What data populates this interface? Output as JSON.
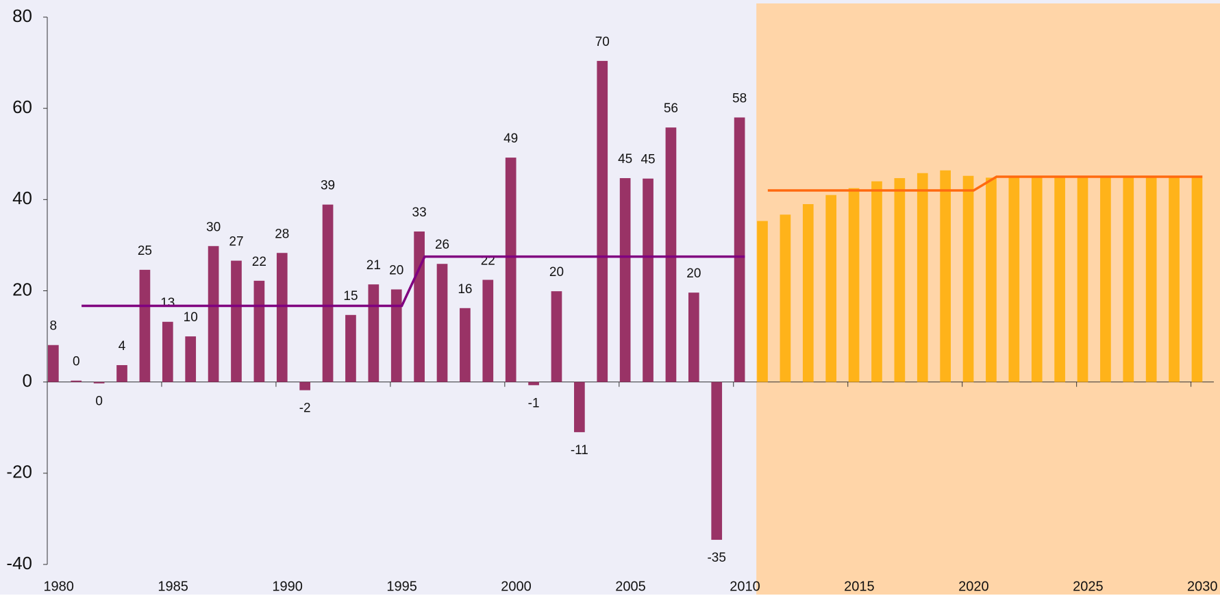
{
  "chart_data": {
    "type": "bar",
    "x": [
      1980,
      1981,
      1982,
      1983,
      1984,
      1985,
      1986,
      1987,
      1988,
      1989,
      1990,
      1991,
      1992,
      1993,
      1994,
      1995,
      1996,
      1997,
      1998,
      1999,
      2000,
      2001,
      2002,
      2003,
      2004,
      2005,
      2006,
      2007,
      2008,
      2009,
      2010,
      2011,
      2012,
      2013,
      2014,
      2015,
      2016,
      2017,
      2018,
      2019,
      2020,
      2021,
      2022,
      2023,
      2024,
      2025,
      2026,
      2027,
      2028,
      2029,
      2030
    ],
    "series": [
      {
        "type": "bar",
        "color": "#993366",
        "values": [
          8.1,
          0.3,
          -0.3,
          3.7,
          24.6,
          13.2,
          10,
          29.8,
          26.6,
          22.2,
          28.3,
          -1.8,
          38.9,
          14.7,
          21.4,
          20.3,
          33,
          25.9,
          16.2,
          22.4,
          49.2,
          -0.7,
          19.9,
          -11,
          70.4,
          44.7,
          44.6,
          55.8,
          19.6,
          -34.6,
          58,
          null,
          null,
          null,
          null,
          null,
          null,
          null,
          null,
          null,
          null,
          null,
          null,
          null,
          null,
          null,
          null,
          null,
          null,
          null,
          null
        ],
        "value_labels": [
          "8",
          "0",
          "0",
          "4",
          "25",
          "13",
          "10",
          "30",
          "27",
          "22",
          "28",
          "-2",
          "39",
          "15",
          "21",
          "20",
          "33",
          "26",
          "16",
          "22",
          "49",
          "-1",
          "20",
          "-11",
          "70",
          "45",
          "45",
          "56",
          "20",
          "-35",
          "58",
          null,
          null,
          null,
          null,
          null,
          null,
          null,
          null,
          null,
          null,
          null,
          null,
          null,
          null,
          null,
          null,
          null,
          null,
          null,
          null
        ]
      },
      {
        "type": "bar",
        "color": "#ffb31a",
        "values": [
          null,
          null,
          null,
          null,
          null,
          null,
          null,
          null,
          null,
          null,
          null,
          null,
          null,
          null,
          null,
          null,
          null,
          null,
          null,
          null,
          null,
          null,
          null,
          null,
          null,
          null,
          null,
          null,
          null,
          null,
          null,
          35.3,
          36.7,
          39,
          41,
          42.5,
          44,
          44.7,
          45.8,
          46.4,
          45.2,
          44.8,
          44.8,
          44.8,
          44.8,
          44.8,
          44.8,
          44.8,
          44.8,
          44.8,
          44.8
        ]
      },
      {
        "type": "line",
        "color": "#800080",
        "values": [
          null,
          16.7,
          16.7,
          16.7,
          16.7,
          16.7,
          16.7,
          16.7,
          16.7,
          16.7,
          16.7,
          16.7,
          16.7,
          16.7,
          16.7,
          16.7,
          27.5,
          27.5,
          27.5,
          27.5,
          27.5,
          27.5,
          27.5,
          27.5,
          27.5,
          27.5,
          27.5,
          27.5,
          27.5,
          27.5,
          27.5,
          null,
          null,
          null,
          null,
          null,
          null,
          null,
          null,
          null,
          null,
          null,
          null,
          null,
          null,
          null,
          null,
          null,
          null,
          null,
          null
        ]
      },
      {
        "type": "line",
        "color": "#ff6a10",
        "values": [
          null,
          null,
          null,
          null,
          null,
          null,
          null,
          null,
          null,
          null,
          null,
          null,
          null,
          null,
          null,
          null,
          null,
          null,
          null,
          null,
          null,
          null,
          null,
          null,
          null,
          null,
          null,
          null,
          null,
          null,
          null,
          42,
          42,
          42,
          42,
          42,
          42,
          42,
          42,
          42,
          42,
          45,
          45,
          45,
          45,
          45,
          45,
          45,
          45,
          45,
          45
        ]
      }
    ],
    "xlim": [
      1980,
      2031
    ],
    "xticks": [
      1980,
      1985,
      1990,
      1995,
      2000,
      2005,
      2010,
      2015,
      2020,
      2025,
      2030
    ],
    "ylim": [
      -40,
      80
    ],
    "yticks": [
      -40,
      -20,
      0,
      20,
      40,
      60,
      80
    ],
    "shade_color": "#ffd5a8",
    "background": "#eeeef8"
  }
}
